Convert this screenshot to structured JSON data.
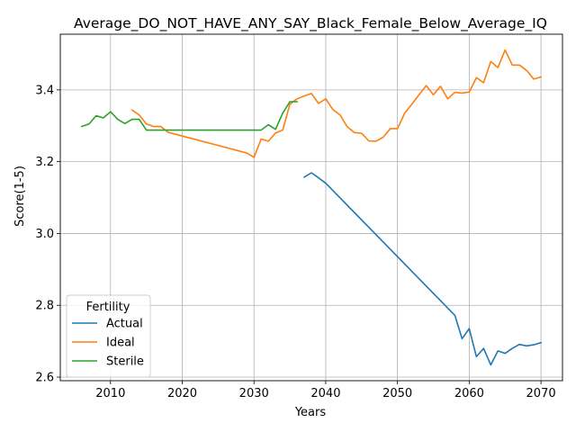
{
  "chart_data": {
    "type": "line",
    "title": "Average_DO_NOT_HAVE_ANY_SAY_Black_Female_Below_Average_IQ",
    "xlabel": "Years",
    "ylabel": "Score(1-5)",
    "xlim": [
      2003,
      2073
    ],
    "ylim": [
      2.59,
      3.555
    ],
    "xticks": [
      2010,
      2020,
      2030,
      2040,
      2050,
      2060,
      2070
    ],
    "yticks": [
      2.6,
      2.8,
      3.0,
      3.2,
      3.4
    ],
    "grid": true,
    "legend": {
      "title": "Fertility",
      "position": "lower-left"
    },
    "series": [
      {
        "name": "Actual",
        "color": "#1f77b4",
        "x": [
          2037,
          2038,
          2039,
          2040,
          2058,
          2059,
          2060,
          2061,
          2062,
          2063,
          2064,
          2065,
          2066,
          2067,
          2068,
          2069,
          2070
        ],
        "y": [
          3.157,
          3.169,
          3.155,
          3.14,
          2.772,
          2.707,
          2.735,
          2.657,
          2.68,
          2.634,
          2.673,
          2.666,
          2.68,
          2.691,
          2.687,
          2.69,
          2.696
        ]
      },
      {
        "name": "Ideal",
        "color": "#ff7f0e",
        "x": [
          2013,
          2014,
          2015,
          2016,
          2017,
          2018,
          2029,
          2030,
          2031,
          2032,
          2033,
          2034,
          2035,
          2036,
          2037,
          2038,
          2039,
          2040,
          2041,
          2042,
          2043,
          2044,
          2045,
          2046,
          2047,
          2048,
          2049,
          2050,
          2051,
          2052,
          2053,
          2054,
          2055,
          2056,
          2057,
          2058,
          2059,
          2060,
          2061,
          2062,
          2063,
          2064,
          2065,
          2066,
          2067,
          2068,
          2069,
          2070
        ],
        "y": [
          3.344,
          3.33,
          3.305,
          3.298,
          3.298,
          3.282,
          3.224,
          3.212,
          3.263,
          3.257,
          3.28,
          3.288,
          3.36,
          3.375,
          3.383,
          3.39,
          3.362,
          3.375,
          3.345,
          3.33,
          3.297,
          3.281,
          3.279,
          3.258,
          3.257,
          3.268,
          3.292,
          3.292,
          3.335,
          3.36,
          3.386,
          3.412,
          3.386,
          3.41,
          3.375,
          3.393,
          3.391,
          3.394,
          3.434,
          3.42,
          3.479,
          3.462,
          3.511,
          3.469,
          3.469,
          3.454,
          3.43,
          3.436
        ]
      },
      {
        "name": "Sterile",
        "color": "#2ca02c",
        "x": [
          2006,
          2007,
          2008,
          2009,
          2010,
          2011,
          2012,
          2013,
          2014,
          2015,
          2030,
          2031,
          2032,
          2033,
          2034,
          2035,
          2036
        ],
        "y": [
          3.298,
          3.305,
          3.328,
          3.322,
          3.339,
          3.318,
          3.306,
          3.318,
          3.318,
          3.288,
          3.288,
          3.288,
          3.303,
          3.29,
          3.335,
          3.367,
          3.367
        ]
      }
    ]
  }
}
